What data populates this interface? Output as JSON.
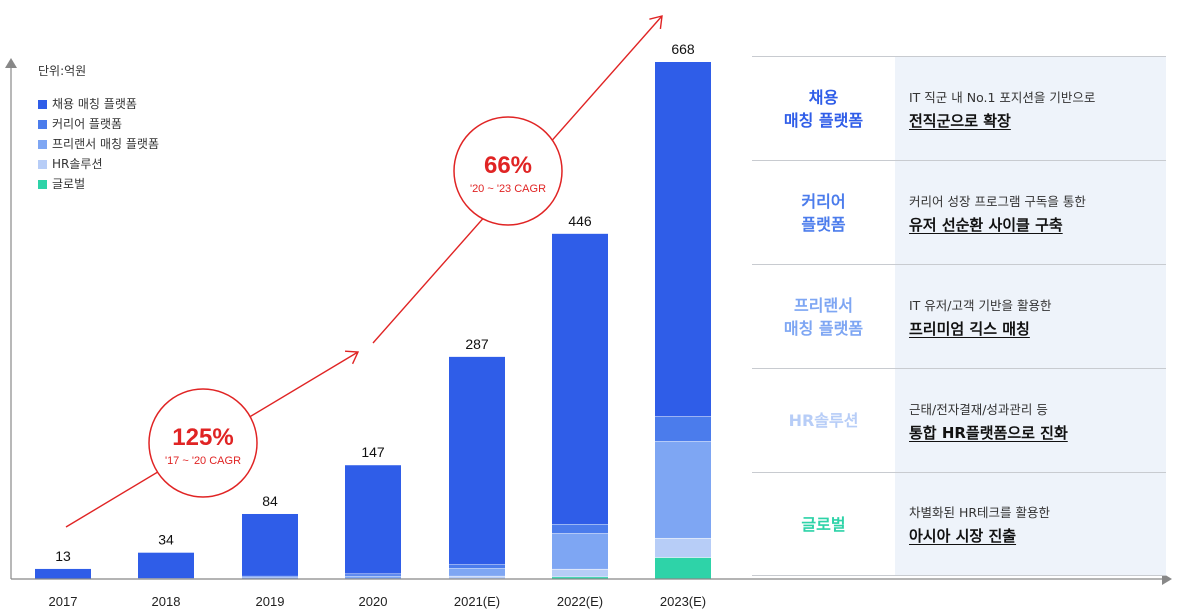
{
  "unit_label": "단위:억원",
  "legend": [
    {
      "label": "채용 매칭 플랫폼",
      "color": "#2f5de8"
    },
    {
      "label": "커리어 플랫폼",
      "color": "#4b7cec"
    },
    {
      "label": "프리랜서 매칭 플랫폼",
      "color": "#7ea6f3"
    },
    {
      "label": "HR솔루션",
      "color": "#b7cdf7"
    },
    {
      "label": "글로벌",
      "color": "#2ed3a8"
    }
  ],
  "chart_data": {
    "type": "bar",
    "stacked": true,
    "categories": [
      "2017",
      "2018",
      "2019",
      "2020",
      "2021(E)",
      "2022(E)",
      "2023(E)"
    ],
    "totals": [
      13,
      34,
      84,
      147,
      287,
      446,
      668
    ],
    "series": [
      {
        "name": "채용 매칭 플랫폼",
        "values": [
          13,
          33,
          80,
          140,
          268,
          375,
          458
        ]
      },
      {
        "name": "커리어 플랫폼",
        "values": [
          0,
          1,
          2,
          3,
          5,
          12,
          32
        ]
      },
      {
        "name": "프리랜서 매칭 플랫폼",
        "values": [
          0,
          0,
          2,
          4,
          10,
          46,
          125
        ]
      },
      {
        "name": "HR솔루션",
        "values": [
          0,
          0,
          0,
          0,
          4,
          10,
          25
        ]
      },
      {
        "name": "글로벌",
        "values": [
          0,
          0,
          0,
          0,
          0,
          3,
          28
        ]
      }
    ],
    "ylim": [
      0,
      680
    ],
    "annotations": [
      {
        "value": "125%",
        "label": "'17 ~ '20 CAGR"
      },
      {
        "value": "66%",
        "label": "'20 ~ '23 CAGR"
      }
    ]
  },
  "table": [
    {
      "name": "채용\n매칭 플랫폼",
      "color": "#2f5de8",
      "line1": "IT 직군 내 No.1 포지션을 기반으로",
      "line2": "전직군으로 확장"
    },
    {
      "name": "커리어\n플랫폼",
      "color": "#4b7cec",
      "line1": "커리어 성장 프로그램 구독을 통한",
      "line2": "유저 선순환 사이클 구축"
    },
    {
      "name": "프리랜서\n매칭 플랫폼",
      "color": "#7ea6f3",
      "line1": "IT 유저/고객 기반을 활용한",
      "line2": "프리미엄 긱스 매칭"
    },
    {
      "name": "HR솔루션",
      "color": "#b7cdf7",
      "line1": "근태/전자결재/성과관리 등",
      "line2": "통합 HR플랫폼으로 진화"
    },
    {
      "name": "글로벌",
      "color": "#2ed3a8",
      "line1": "차별화된 HR테크를 활용한",
      "line2": "아시아 시장 진출"
    }
  ]
}
